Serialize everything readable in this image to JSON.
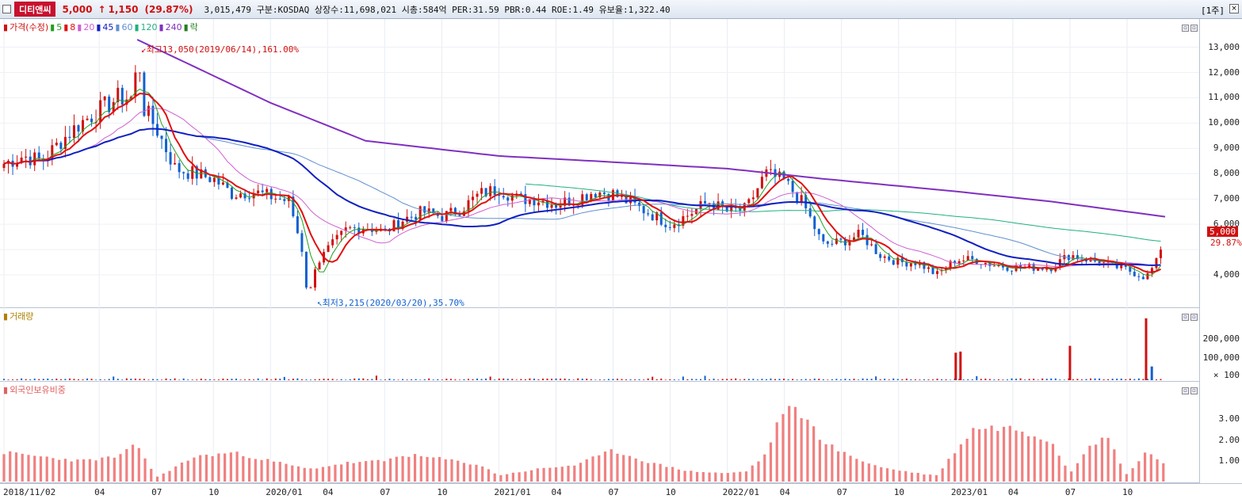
{
  "header": {
    "stock_name": "디티앤씨",
    "price": "5,000",
    "arrow": "↑",
    "change": "1,150",
    "change_pct": "(29.87%)",
    "info": "3,015,479  구분:KOSDAQ 상장수:11,698,021 시총:584억 PER:31.59 PBR:0.44 ROE:1.49 유보율:1,322.40",
    "period": "[1주]",
    "close_icon": "x-icon"
  },
  "price_pane": {
    "legend": [
      {
        "label": "가격(수정)",
        "color": "#d01010"
      },
      {
        "label": "5",
        "color": "#20a020"
      },
      {
        "label": "8",
        "color": "#e01010"
      },
      {
        "label": "20",
        "color": "#d060d0"
      },
      {
        "label": "45",
        "color": "#1020c0"
      },
      {
        "label": "60",
        "color": "#6090d0"
      },
      {
        "label": "120",
        "color": "#20b080"
      },
      {
        "label": "240",
        "color": "#8030c0"
      },
      {
        "label": "락",
        "color": "#208020"
      }
    ],
    "high_annotation": "최고13,050(2019/06/14),161.00%",
    "low_annotation": "최저3,215(2020/03/20),35.70%",
    "current_price_label": "5,000",
    "current_pct_label": "29.87%",
    "y_labels": [
      "13,000",
      "12,000",
      "11,000",
      "10,000",
      "9,000",
      "8,000",
      "7,000",
      "6,000",
      "5,000",
      "4,000"
    ]
  },
  "volume_pane": {
    "legend": "거래량",
    "y_labels": [
      "200,000",
      "100,000",
      "× 100"
    ]
  },
  "foreign_pane": {
    "legend": "외국인보유비중",
    "y_labels": [
      "3.00",
      "2.00",
      "1.00"
    ]
  },
  "x_axis": {
    "labels": [
      "2018/11/02",
      "04",
      "07",
      "10",
      "2020/01",
      "04",
      "07",
      "10",
      "2021/01",
      "04",
      "07",
      "10",
      "2022/01",
      "04",
      "07",
      "10",
      "2023/01",
      "04",
      "07",
      "10"
    ]
  },
  "colors": {
    "up": "#d01010",
    "down": "#1060d0",
    "ma5": "#20a020",
    "ma8": "#e01010",
    "ma20": "#d060d0",
    "ma45": "#1020c0",
    "ma60": "#6090d0",
    "ma120": "#20b080",
    "ma240": "#8030c0",
    "foreign_bar": "#f08080"
  },
  "chart_data": {
    "type": "candlestick",
    "title": "디티앤씨",
    "ylim": [
      3000,
      13800
    ],
    "price_series": {
      "name": "가격(수정)",
      "x_start": "2018/11/02",
      "x_end": "2023/12",
      "keypoints": [
        [
          "2018/11",
          8400
        ],
        [
          "2018/12",
          8700
        ],
        [
          "2019/01",
          8500
        ],
        [
          "2019/02",
          9300
        ],
        [
          "2019/03",
          10000
        ],
        [
          "2019/04",
          10500
        ],
        [
          "2019/05",
          11000
        ],
        [
          "2019/06",
          11000
        ],
        [
          "2019/07",
          9800
        ],
        [
          "2019/08",
          8200
        ],
        [
          "2019/09",
          8000
        ],
        [
          "2019/10",
          7800
        ],
        [
          "2019/11",
          7200
        ],
        [
          "2019/12",
          7300
        ],
        [
          "2020/01",
          7100
        ],
        [
          "2020/02",
          6900
        ],
        [
          "2020/03",
          4000
        ],
        [
          "2020/04",
          5000
        ],
        [
          "2020/05",
          5800
        ],
        [
          "2020/06",
          5900
        ],
        [
          "2020/07",
          5700
        ],
        [
          "2020/08",
          6200
        ],
        [
          "2020/09",
          6500
        ],
        [
          "2020/10",
          6300
        ],
        [
          "2020/11",
          6600
        ],
        [
          "2020/12",
          7200
        ],
        [
          "2021/01",
          7400
        ],
        [
          "2021/02",
          7000
        ],
        [
          "2021/03",
          7000
        ],
        [
          "2021/04",
          6800
        ],
        [
          "2021/05",
          7000
        ],
        [
          "2021/06",
          7300
        ],
        [
          "2021/07",
          7200
        ],
        [
          "2021/08",
          6800
        ],
        [
          "2021/09",
          6400
        ],
        [
          "2021/10",
          6000
        ],
        [
          "2021/11",
          6400
        ],
        [
          "2021/12",
          6900
        ],
        [
          "2022/01",
          6500
        ],
        [
          "2022/02",
          6600
        ],
        [
          "2022/03",
          8000
        ],
        [
          "2022/04",
          7700
        ],
        [
          "2022/05",
          6800
        ],
        [
          "2022/06",
          5200
        ],
        [
          "2022/07",
          5300
        ],
        [
          "2022/08",
          5600
        ],
        [
          "2022/09",
          4800
        ],
        [
          "2022/10",
          4500
        ],
        [
          "2022/11",
          4500
        ],
        [
          "2022/12",
          4000
        ],
        [
          "2023/01",
          4600
        ],
        [
          "2023/02",
          4600
        ],
        [
          "2023/03",
          4400
        ],
        [
          "2023/04",
          4300
        ],
        [
          "2023/05",
          4300
        ],
        [
          "2023/06",
          4300
        ],
        [
          "2023/07",
          4800
        ],
        [
          "2023/08",
          4600
        ],
        [
          "2023/09",
          4400
        ],
        [
          "2023/10",
          4200
        ],
        [
          "2023/11",
          3900
        ],
        [
          "2023/12",
          5000
        ]
      ]
    },
    "ma240_series": {
      "name": "240",
      "keypoints": [
        [
          "2019/06",
          13300
        ],
        [
          "2020/01",
          10800
        ],
        [
          "2020/06",
          9300
        ],
        [
          "2021/01",
          8700
        ],
        [
          "2021/06",
          8500
        ],
        [
          "2022/01",
          8200
        ],
        [
          "2022/06",
          7800
        ],
        [
          "2023/01",
          7300
        ],
        [
          "2023/06",
          6900
        ],
        [
          "2023/12",
          6300
        ]
      ]
    },
    "high": {
      "value": 13050,
      "date": "2019/06/14",
      "pct": "161.00%"
    },
    "low": {
      "value": 3215,
      "date": "2020/03/20",
      "pct": "35.70%"
    },
    "volume": {
      "name": "거래량",
      "ylim": [
        0,
        280000
      ],
      "spikes": [
        [
          "2023/01",
          120000
        ],
        [
          "2023/01",
          125000
        ],
        [
          "2023/07",
          150000
        ],
        [
          "2023/11",
          270000
        ],
        [
          "2023/11",
          60000
        ]
      ]
    },
    "foreign_holding": {
      "name": "외국인보유비중",
      "ylim": [
        0,
        4.2
      ],
      "keypoints": [
        [
          "2018/11",
          1.4
        ],
        [
          "2019/01",
          1.2
        ],
        [
          "2019/03",
          1.0
        ],
        [
          "2019/05",
          1.2
        ],
        [
          "2019/06",
          1.8
        ],
        [
          "2019/07",
          0.2
        ],
        [
          "2019/09",
          1.2
        ],
        [
          "2019/11",
          1.4
        ],
        [
          "2020/01",
          1.0
        ],
        [
          "2020/03",
          0.6
        ],
        [
          "2020/05",
          0.9
        ],
        [
          "2020/07",
          1.0
        ],
        [
          "2020/08",
          1.3
        ],
        [
          "2020/10",
          1.1
        ],
        [
          "2020/12",
          0.8
        ],
        [
          "2021/01",
          0.3
        ],
        [
          "2021/03",
          0.6
        ],
        [
          "2021/05",
          0.8
        ],
        [
          "2021/07",
          1.5
        ],
        [
          "2021/09",
          0.9
        ],
        [
          "2021/11",
          0.5
        ],
        [
          "2022/01",
          0.4
        ],
        [
          "2022/02",
          0.5
        ],
        [
          "2022/03",
          1.3
        ],
        [
          "2022/04",
          3.6
        ],
        [
          "2022/05",
          3.2
        ],
        [
          "2022/06",
          2.0
        ],
        [
          "2022/07",
          1.4
        ],
        [
          "2022/09",
          0.7
        ],
        [
          "2022/11",
          0.4
        ],
        [
          "2022/12",
          0.3
        ],
        [
          "2023/01",
          1.5
        ],
        [
          "2023/02",
          2.6
        ],
        [
          "2023/04",
          2.6
        ],
        [
          "2023/06",
          2.0
        ],
        [
          "2023/07",
          0.4
        ],
        [
          "2023/08",
          1.8
        ],
        [
          "2023/09",
          2.1
        ],
        [
          "2023/10",
          0.3
        ],
        [
          "2023/11",
          1.5
        ],
        [
          "2023/12",
          0.8
        ]
      ]
    }
  }
}
